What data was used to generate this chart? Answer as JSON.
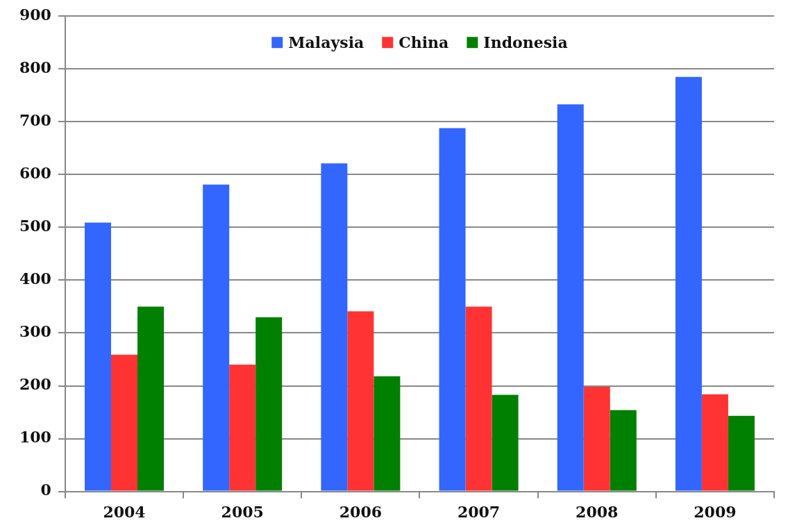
{
  "chart_data": {
    "type": "bar",
    "categories": [
      "2004",
      "2005",
      "2006",
      "2007",
      "2008",
      "2009"
    ],
    "series": [
      {
        "name": "Malaysia",
        "color": "#3366ff",
        "values": [
          509,
          581,
          621,
          688,
          733,
          785
        ]
      },
      {
        "name": "China",
        "color": "#ff3333",
        "values": [
          259,
          240,
          341,
          350,
          198,
          184
        ]
      },
      {
        "name": "Indonesia",
        "color": "#008000",
        "values": [
          350,
          330,
          218,
          183,
          154,
          143
        ]
      }
    ],
    "ylim": [
      0,
      900
    ],
    "yticks": [
      0,
      100,
      200,
      300,
      400,
      500,
      600,
      700,
      800,
      900
    ],
    "grid": "y",
    "legend": "top"
  }
}
